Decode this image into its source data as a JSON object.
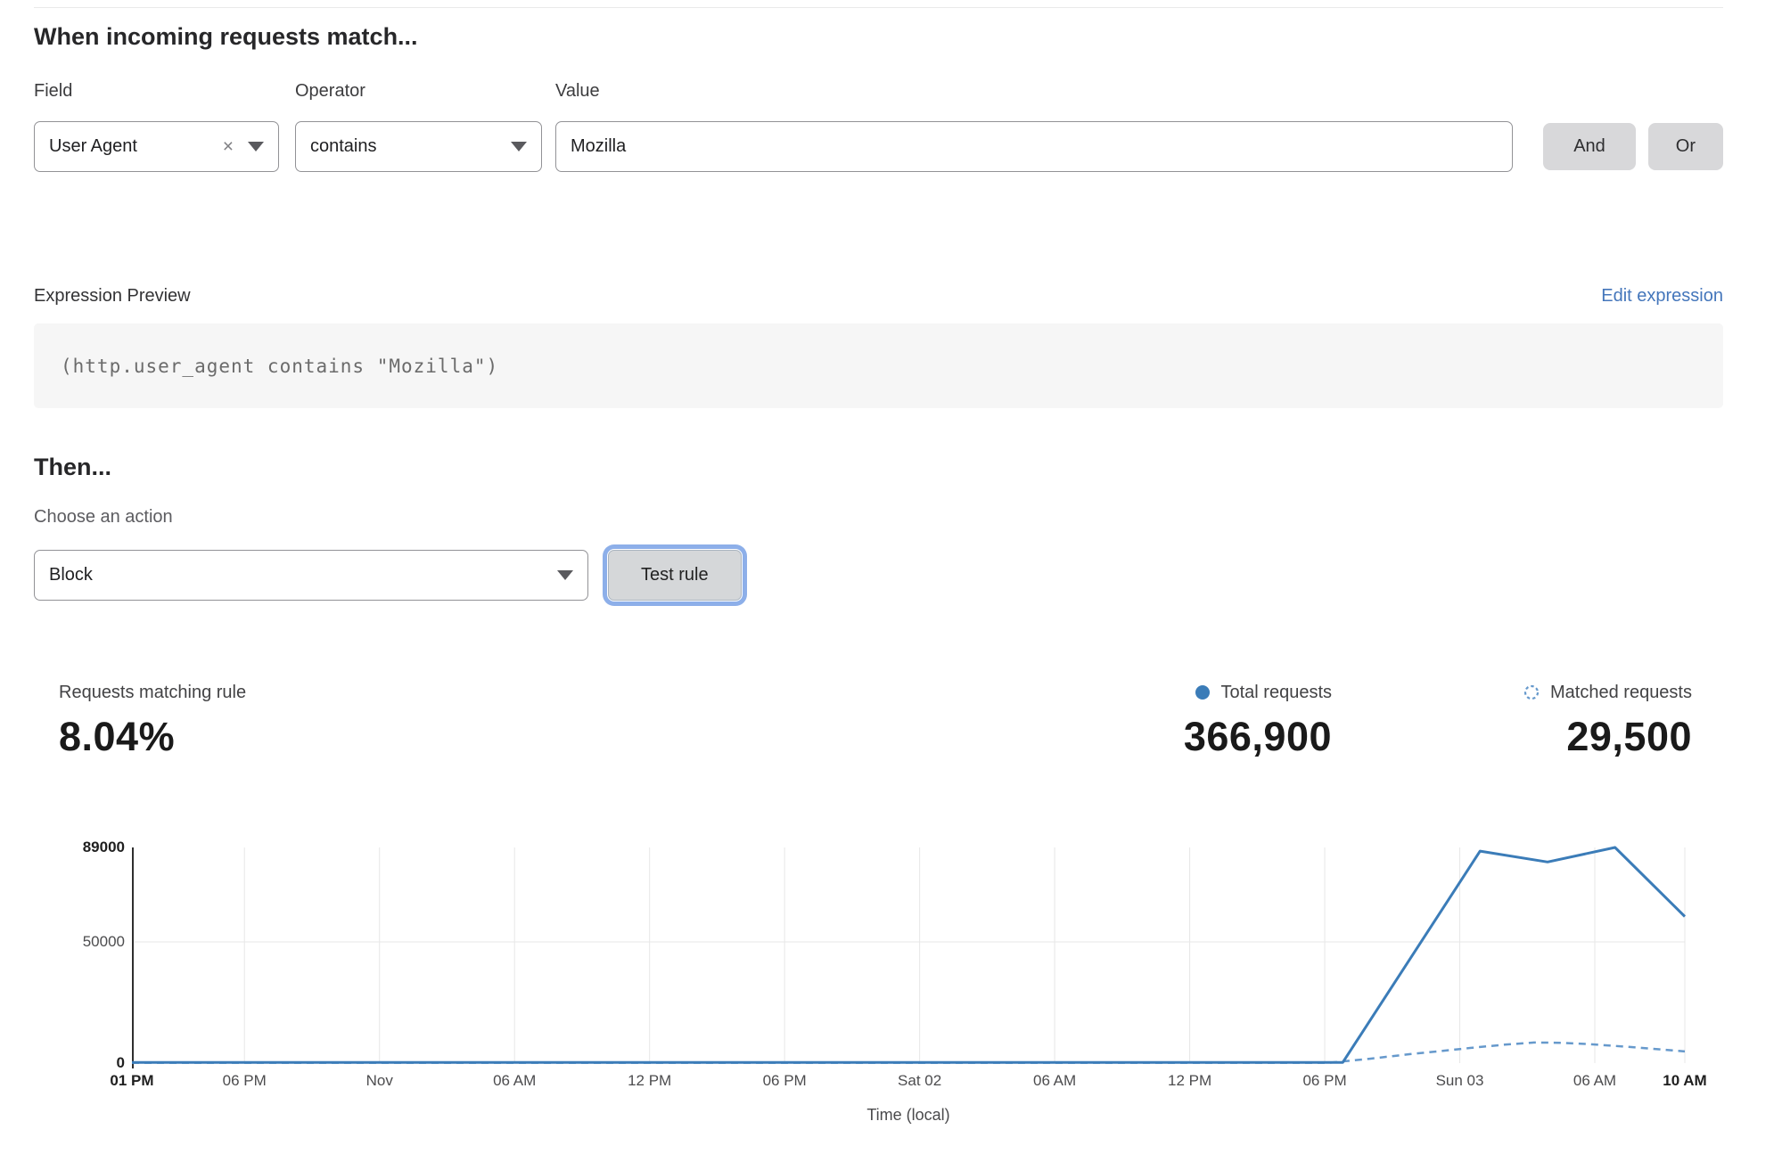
{
  "rule_builder": {
    "title": "When incoming requests match...",
    "field": {
      "label": "Field",
      "value": "User Agent"
    },
    "operator": {
      "label": "Operator",
      "value": "contains"
    },
    "value": {
      "label": "Value",
      "value": "Mozilla"
    },
    "and_label": "And",
    "or_label": "Or"
  },
  "expression": {
    "label": "Expression Preview",
    "edit_link": "Edit expression",
    "code": "(http.user_agent contains \"Mozilla\")"
  },
  "action": {
    "title": "Then...",
    "choose_label": "Choose an action",
    "selected": "Block",
    "test_button": "Test rule"
  },
  "stats": {
    "matching": {
      "label": "Requests matching rule",
      "value": "8.04%"
    },
    "total": {
      "label": "Total requests",
      "value": "366,900"
    },
    "matched": {
      "label": "Matched requests",
      "value": "29,500"
    }
  },
  "colors": {
    "line_solid": "#3b7cb8",
    "line_dashed": "#6699cc",
    "link": "#4476bb",
    "button_bg": "#d8d8da",
    "focus_ring": "#709be4",
    "code_bg": "#f6f6f6",
    "grid": "#e7e7e7",
    "axis": "#2f2f2f"
  },
  "chart_data": {
    "type": "line",
    "title": "",
    "xlabel": "Time (local)",
    "ylabel": "",
    "ylim": [
      0,
      89000
    ],
    "x_range_hours": [
      0,
      69
    ],
    "grid": true,
    "legend_position": "top-right",
    "yticks": [
      {
        "value": 89000,
        "label": "89000",
        "bold": true
      },
      {
        "value": 50000,
        "label": "50000",
        "bold": false
      },
      {
        "value": 0,
        "label": "0",
        "bold": true
      }
    ],
    "xticks": [
      {
        "h": 0,
        "label": "01 PM",
        "bold": true
      },
      {
        "h": 5,
        "label": "06 PM",
        "bold": false
      },
      {
        "h": 11,
        "label": "Nov",
        "bold": false
      },
      {
        "h": 17,
        "label": "06 AM",
        "bold": false
      },
      {
        "h": 23,
        "label": "12 PM",
        "bold": false
      },
      {
        "h": 29,
        "label": "06 PM",
        "bold": false
      },
      {
        "h": 35,
        "label": "Sat 02",
        "bold": false
      },
      {
        "h": 41,
        "label": "06 AM",
        "bold": false
      },
      {
        "h": 47,
        "label": "12 PM",
        "bold": false
      },
      {
        "h": 53,
        "label": "06 PM",
        "bold": false
      },
      {
        "h": 59,
        "label": "Sun 03",
        "bold": false
      },
      {
        "h": 65,
        "label": "06 AM",
        "bold": false
      },
      {
        "h": 69,
        "label": "10 AM",
        "bold": true
      }
    ],
    "gridline_hours": [
      5,
      11,
      17,
      23,
      29,
      35,
      41,
      47,
      53,
      59,
      65,
      69
    ],
    "hgridline_values": [
      50000
    ],
    "series": [
      {
        "name": "Total requests",
        "style": "solid",
        "color": "#3b7cb8",
        "width": 3,
        "points": [
          [
            0,
            300
          ],
          [
            53.8,
            300
          ],
          [
            59.9,
            87500
          ],
          [
            62.9,
            83000
          ],
          [
            65.9,
            89000
          ],
          [
            69,
            60500
          ]
        ]
      },
      {
        "name": "Matched requests",
        "style": "dashed",
        "color": "#6699cc",
        "width": 2.5,
        "points": [
          [
            0,
            150
          ],
          [
            53.2,
            150
          ],
          [
            55,
            1800
          ],
          [
            56.8,
            3700
          ],
          [
            58.2,
            5000
          ],
          [
            59.5,
            6300
          ],
          [
            61,
            7600
          ],
          [
            62.3,
            8500
          ],
          [
            63.5,
            8400
          ],
          [
            64.8,
            7800
          ],
          [
            66.5,
            6700
          ],
          [
            68,
            5600
          ],
          [
            69,
            4800
          ]
        ]
      }
    ],
    "legend": [
      {
        "label": "Total requests",
        "marker": "filled-dot",
        "value": "366,900"
      },
      {
        "label": "Matched requests",
        "marker": "dashed-circle",
        "value": "29,500"
      }
    ]
  }
}
